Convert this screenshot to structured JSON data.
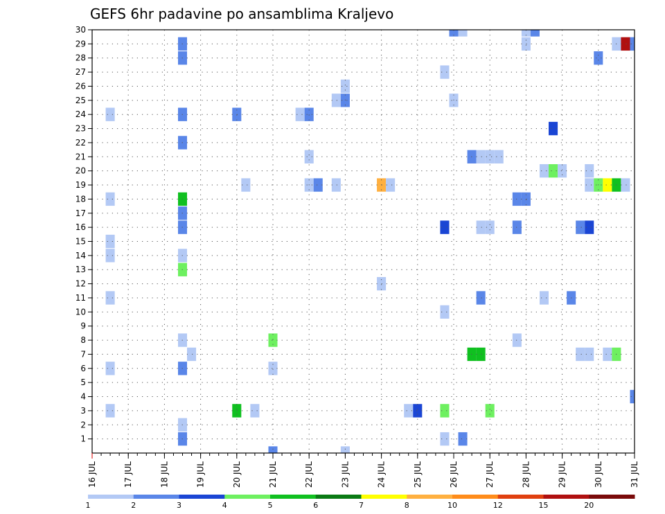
{
  "chart_data": {
    "type": "heatmap",
    "title": "GEFS 6hr padavine po ansamblima Kraljevo",
    "xlabel": "",
    "ylabel": "",
    "x_unit_note": "6-hour steps from 16 JUL 00z",
    "x_ticks": [
      {
        "t": 0,
        "label": "16 JUL"
      },
      {
        "t": 4,
        "label": "17 JUL"
      },
      {
        "t": 8,
        "label": "18 JUL"
      },
      {
        "t": 12,
        "label": "19 JUL"
      },
      {
        "t": 16,
        "label": "20 JUL"
      },
      {
        "t": 20,
        "label": "21 JUL"
      },
      {
        "t": 24,
        "label": "22 JUL"
      },
      {
        "t": 28,
        "label": "23 JUL"
      },
      {
        "t": 32,
        "label": "24 JUL"
      },
      {
        "t": 36,
        "label": "25 JUL"
      },
      {
        "t": 40,
        "label": "26 JUL"
      },
      {
        "t": 44,
        "label": "27 JUL"
      },
      {
        "t": 48,
        "label": "28 JUL"
      },
      {
        "t": 52,
        "label": "29 JUL"
      },
      {
        "t": 56,
        "label": "30 JUL"
      },
      {
        "t": 60,
        "label": "31 JUL"
      }
    ],
    "y_ticks": [
      1,
      2,
      3,
      4,
      5,
      6,
      7,
      8,
      9,
      10,
      11,
      12,
      13,
      14,
      15,
      16,
      17,
      18,
      19,
      20,
      21,
      22,
      23,
      24,
      25,
      26,
      27,
      28,
      29,
      30
    ],
    "xlim": [
      0,
      60
    ],
    "ylim": [
      0,
      30
    ],
    "grid": true,
    "legend_placement": "bottom",
    "colorbar": {
      "labels": [
        "1",
        "2",
        "3",
        "4",
        "5",
        "6",
        "7",
        "8",
        "10",
        "12",
        "15",
        "20"
      ],
      "colors": [
        "#b3c9f5",
        "#5a86e8",
        "#1a45d4",
        "#6ef060",
        "#10c020",
        "#0a7a14",
        "#ffff00",
        "#ffb040",
        "#ff8c1a",
        "#e04010",
        "#b01010",
        "#7a0a0a"
      ]
    },
    "cells": [
      {
        "t": 40,
        "m": 30,
        "level": 2
      },
      {
        "t": 41,
        "m": 30,
        "level": 1
      },
      {
        "t": 48,
        "m": 30,
        "level": 1
      },
      {
        "t": 49,
        "m": 30,
        "level": 2
      },
      {
        "t": 10,
        "m": 29,
        "level": 2
      },
      {
        "t": 48,
        "m": 29,
        "level": 1
      },
      {
        "t": 58,
        "m": 29,
        "level": 1
      },
      {
        "t": 59,
        "m": 29,
        "level": 11
      },
      {
        "t": 60,
        "m": 29,
        "level": 2
      },
      {
        "t": 10,
        "m": 28,
        "level": 2
      },
      {
        "t": 56,
        "m": 28,
        "level": 2
      },
      {
        "t": 39,
        "m": 27,
        "level": 1
      },
      {
        "t": 28,
        "m": 26,
        "level": 1
      },
      {
        "t": 27,
        "m": 25,
        "level": 1
      },
      {
        "t": 28,
        "m": 25,
        "level": 2
      },
      {
        "t": 40,
        "m": 25,
        "level": 1
      },
      {
        "t": 2,
        "m": 24,
        "level": 1
      },
      {
        "t": 10,
        "m": 24,
        "level": 2
      },
      {
        "t": 16,
        "m": 24,
        "level": 2
      },
      {
        "t": 23,
        "m": 24,
        "level": 1
      },
      {
        "t": 24,
        "m": 24,
        "level": 2
      },
      {
        "t": 51,
        "m": 23,
        "level": 3
      },
      {
        "t": 10,
        "m": 22,
        "level": 2
      },
      {
        "t": 24,
        "m": 21,
        "level": 1
      },
      {
        "t": 42,
        "m": 21,
        "level": 2
      },
      {
        "t": 43,
        "m": 21,
        "level": 1
      },
      {
        "t": 44,
        "m": 21,
        "level": 1
      },
      {
        "t": 45,
        "m": 21,
        "level": 1
      },
      {
        "t": 50,
        "m": 20,
        "level": 1
      },
      {
        "t": 51,
        "m": 20,
        "level": 4
      },
      {
        "t": 52,
        "m": 20,
        "level": 1
      },
      {
        "t": 55,
        "m": 20,
        "level": 1
      },
      {
        "t": 17,
        "m": 19,
        "level": 1
      },
      {
        "t": 24,
        "m": 19,
        "level": 1
      },
      {
        "t": 25,
        "m": 19,
        "level": 2
      },
      {
        "t": 27,
        "m": 19,
        "level": 1
      },
      {
        "t": 32,
        "m": 19,
        "level": 8
      },
      {
        "t": 33,
        "m": 19,
        "level": 1
      },
      {
        "t": 55,
        "m": 19,
        "level": 1
      },
      {
        "t": 56,
        "m": 19,
        "level": 4
      },
      {
        "t": 57,
        "m": 19,
        "level": 7
      },
      {
        "t": 58,
        "m": 19,
        "level": 5
      },
      {
        "t": 59,
        "m": 19,
        "level": 1
      },
      {
        "t": 2,
        "m": 18,
        "level": 1
      },
      {
        "t": 10,
        "m": 18,
        "level": 5
      },
      {
        "t": 47,
        "m": 18,
        "level": 2
      },
      {
        "t": 48,
        "m": 18,
        "level": 2
      },
      {
        "t": 10,
        "m": 17,
        "level": 2
      },
      {
        "t": 10,
        "m": 16,
        "level": 2
      },
      {
        "t": 39,
        "m": 16,
        "level": 3
      },
      {
        "t": 43,
        "m": 16,
        "level": 1
      },
      {
        "t": 44,
        "m": 16,
        "level": 1
      },
      {
        "t": 47,
        "m": 16,
        "level": 2
      },
      {
        "t": 54,
        "m": 16,
        "level": 2
      },
      {
        "t": 55,
        "m": 16,
        "level": 3
      },
      {
        "t": 2,
        "m": 15,
        "level": 1
      },
      {
        "t": 2,
        "m": 14,
        "level": 1
      },
      {
        "t": 10,
        "m": 14,
        "level": 1
      },
      {
        "t": 10,
        "m": 13,
        "level": 4
      },
      {
        "t": 32,
        "m": 12,
        "level": 1
      },
      {
        "t": 2,
        "m": 11,
        "level": 1
      },
      {
        "t": 43,
        "m": 11,
        "level": 2
      },
      {
        "t": 50,
        "m": 11,
        "level": 1
      },
      {
        "t": 53,
        "m": 11,
        "level": 2
      },
      {
        "t": 39,
        "m": 10,
        "level": 1
      },
      {
        "t": 10,
        "m": 8,
        "level": 1
      },
      {
        "t": 20,
        "m": 8,
        "level": 4
      },
      {
        "t": 47,
        "m": 8,
        "level": 1
      },
      {
        "t": 11,
        "m": 7,
        "level": 1
      },
      {
        "t": 42,
        "m": 7,
        "level": 5
      },
      {
        "t": 43,
        "m": 7,
        "level": 5
      },
      {
        "t": 54,
        "m": 7,
        "level": 1
      },
      {
        "t": 55,
        "m": 7,
        "level": 1
      },
      {
        "t": 57,
        "m": 7,
        "level": 1
      },
      {
        "t": 58,
        "m": 7,
        "level": 4
      },
      {
        "t": 2,
        "m": 6,
        "level": 1
      },
      {
        "t": 10,
        "m": 6,
        "level": 2
      },
      {
        "t": 20,
        "m": 6,
        "level": 1
      },
      {
        "t": 60,
        "m": 4,
        "level": 2
      },
      {
        "t": 2,
        "m": 3,
        "level": 1
      },
      {
        "t": 16,
        "m": 3,
        "level": 5
      },
      {
        "t": 18,
        "m": 3,
        "level": 1
      },
      {
        "t": 35,
        "m": 3,
        "level": 1
      },
      {
        "t": 36,
        "m": 3,
        "level": 3
      },
      {
        "t": 39,
        "m": 3,
        "level": 4
      },
      {
        "t": 44,
        "m": 3,
        "level": 4
      },
      {
        "t": 10,
        "m": 2,
        "level": 1
      },
      {
        "t": 10,
        "m": 1,
        "level": 2
      },
      {
        "t": 39,
        "m": 1,
        "level": 1
      },
      {
        "t": 41,
        "m": 1,
        "level": 2
      },
      {
        "t": 20,
        "m": 0,
        "level": 2
      },
      {
        "t": 28,
        "m": 0,
        "level": 1
      }
    ]
  }
}
